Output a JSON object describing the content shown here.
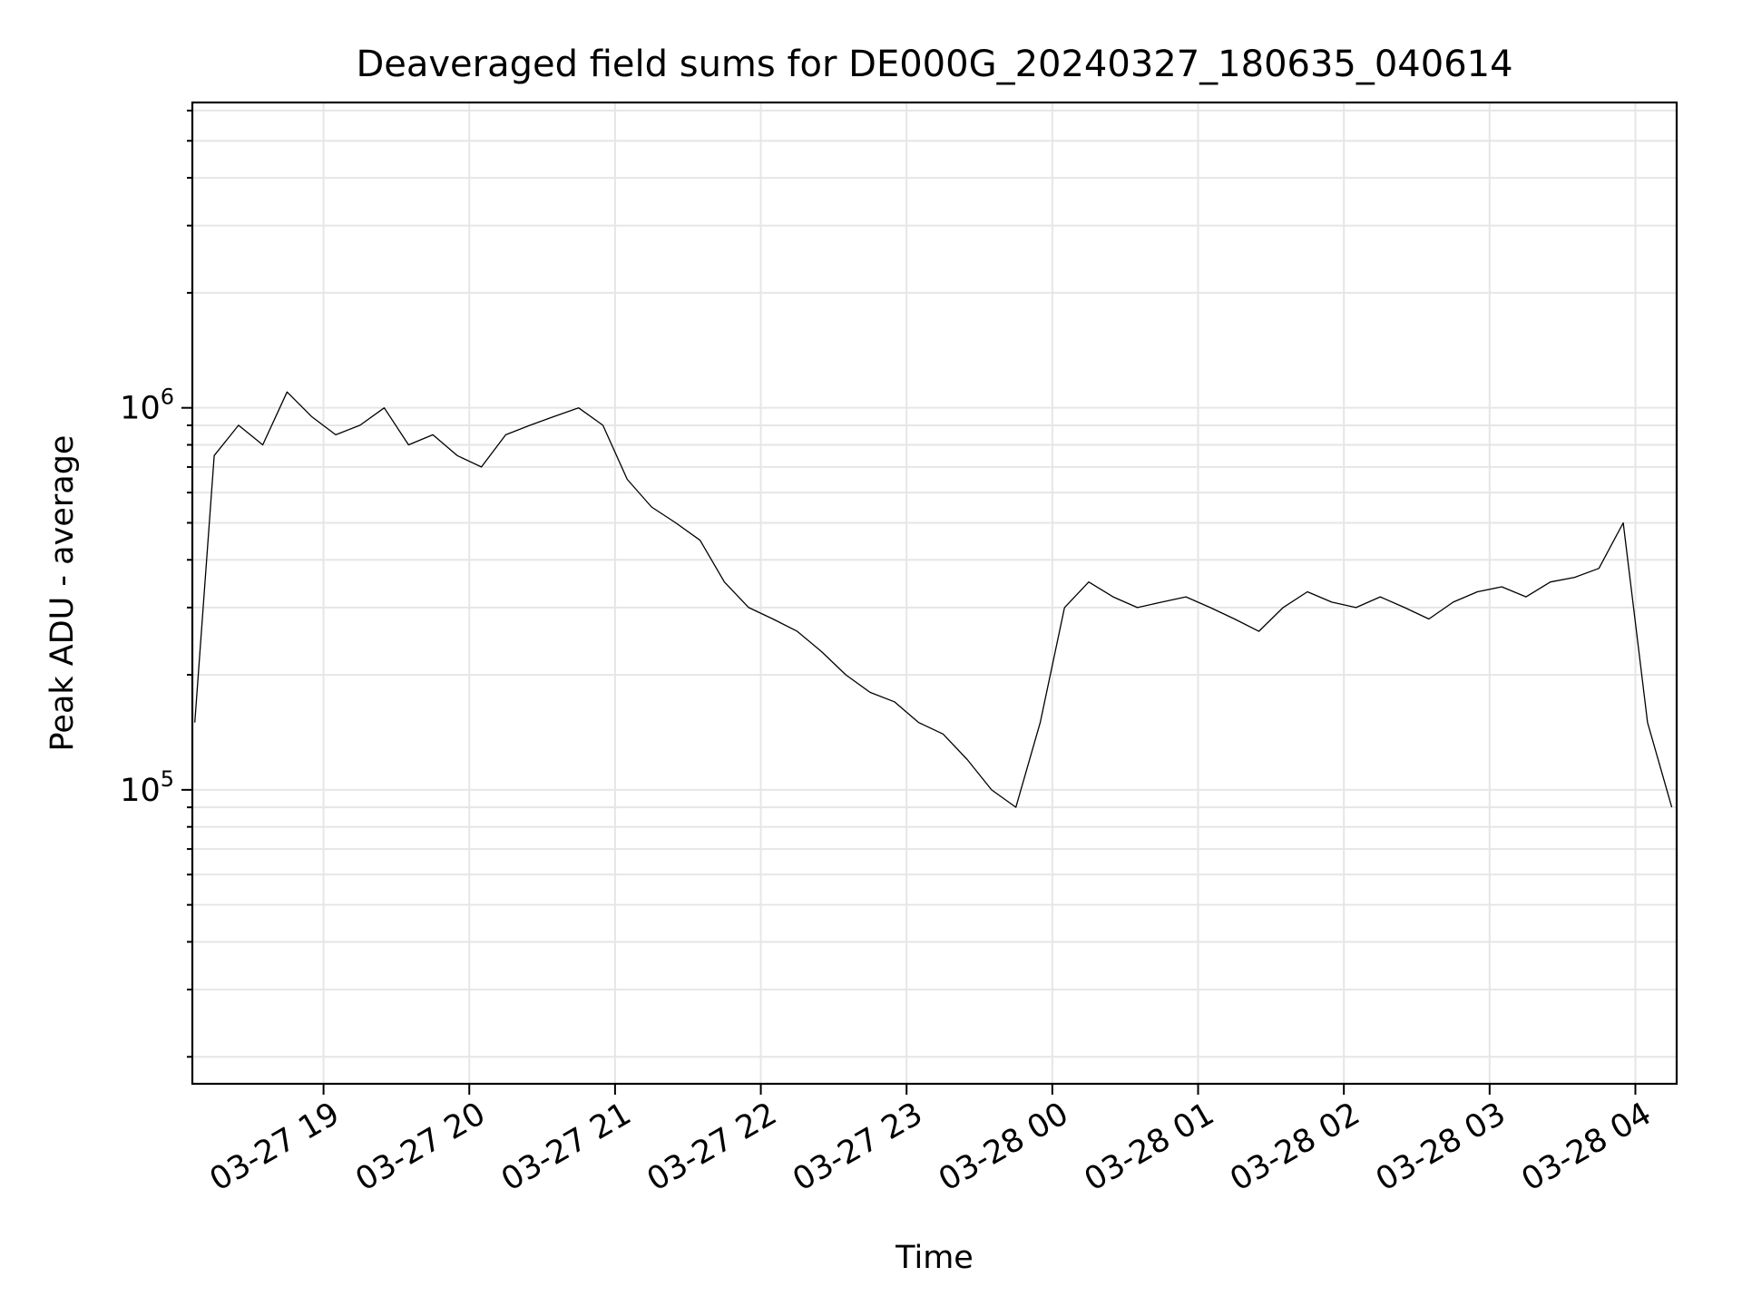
{
  "chart_data": {
    "type": "line",
    "title": "Deaveraged field sums for DE000G_20240327_180635_040614",
    "xlabel": "Time",
    "ylabel": "Peak ADU - average",
    "yscale": "log",
    "ylim": [
      17000,
      6300000
    ],
    "xlim": [
      "2024-03-27 18:06",
      "2024-03-28 04:17"
    ],
    "x_ticks": [
      "03-27 19",
      "03-27 20",
      "03-27 21",
      "03-27 22",
      "03-27 23",
      "03-28 00",
      "03-28 01",
      "03-28 02",
      "03-28 03",
      "03-28 04"
    ],
    "y_ticks": [
      {
        "base": "10",
        "exp": "5"
      },
      {
        "base": "10",
        "exp": "6"
      }
    ],
    "grid": true,
    "line_color": "#000000",
    "series": [
      {
        "name": "",
        "x": [
          "2024-03-27 18:07",
          "2024-03-27 18:15",
          "2024-03-27 18:25",
          "2024-03-27 18:35",
          "2024-03-27 18:45",
          "2024-03-27 18:55",
          "2024-03-27 19:05",
          "2024-03-27 19:15",
          "2024-03-27 19:25",
          "2024-03-27 19:35",
          "2024-03-27 19:45",
          "2024-03-27 19:55",
          "2024-03-27 20:05",
          "2024-03-27 20:15",
          "2024-03-27 20:25",
          "2024-03-27 20:35",
          "2024-03-27 20:45",
          "2024-03-27 20:55",
          "2024-03-27 21:05",
          "2024-03-27 21:15",
          "2024-03-27 21:25",
          "2024-03-27 21:35",
          "2024-03-27 21:45",
          "2024-03-27 21:55",
          "2024-03-27 22:05",
          "2024-03-27 22:15",
          "2024-03-27 22:25",
          "2024-03-27 22:35",
          "2024-03-27 22:45",
          "2024-03-27 22:55",
          "2024-03-27 23:05",
          "2024-03-27 23:15",
          "2024-03-27 23:25",
          "2024-03-27 23:35",
          "2024-03-27 23:45",
          "2024-03-27 23:55",
          "2024-03-28 00:05",
          "2024-03-28 00:15",
          "2024-03-28 00:25",
          "2024-03-28 00:35",
          "2024-03-28 00:45",
          "2024-03-28 00:55",
          "2024-03-28 01:05",
          "2024-03-28 01:15",
          "2024-03-28 01:25",
          "2024-03-28 01:35",
          "2024-03-28 01:45",
          "2024-03-28 01:55",
          "2024-03-28 02:05",
          "2024-03-28 02:15",
          "2024-03-28 02:25",
          "2024-03-28 02:35",
          "2024-03-28 02:45",
          "2024-03-28 02:55",
          "2024-03-28 03:05",
          "2024-03-28 03:15",
          "2024-03-28 03:25",
          "2024-03-28 03:35",
          "2024-03-28 03:45",
          "2024-03-28 03:55",
          "2024-03-28 04:05",
          "2024-03-28 04:15"
        ],
        "y": [
          150000,
          750000,
          900000,
          800000,
          1100000,
          950000,
          850000,
          900000,
          1000000,
          800000,
          850000,
          750000,
          700000,
          850000,
          900000,
          950000,
          1000000,
          900000,
          650000,
          550000,
          500000,
          450000,
          350000,
          300000,
          280000,
          260000,
          230000,
          200000,
          180000,
          170000,
          150000,
          140000,
          120000,
          100000,
          90000,
          150000,
          300000,
          350000,
          320000,
          300000,
          310000,
          320000,
          300000,
          280000,
          260000,
          300000,
          330000,
          310000,
          300000,
          320000,
          300000,
          280000,
          310000,
          330000,
          340000,
          320000,
          350000,
          360000,
          380000,
          500000,
          150000,
          90000
        ]
      }
    ]
  }
}
